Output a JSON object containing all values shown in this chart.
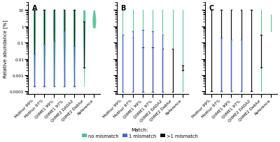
{
  "categories": [
    "Mothur 99%",
    "Mothur 97%",
    "QIIME1 99%",
    "QIIME1 97%",
    "QIIME2 DADA2",
    "QIIME2 Deblur",
    "Reference"
  ],
  "colors": {
    "green": "#4dbe8c",
    "blue": "#4169cd",
    "gray": "#888888",
    "black": "#111111"
  },
  "ylim_log": [
    7e-05,
    30
  ],
  "yticks": [
    0.0001,
    0.001,
    0.01,
    0.1,
    1,
    10
  ],
  "ytick_labels": [
    "0.0001",
    "0.001",
    "0.01",
    "0.1",
    "1",
    "10"
  ],
  "ylabel": "Relative abundance [%]",
  "panel_labels": [
    "A",
    "B",
    "C"
  ],
  "legend_labels": [
    "no mismatch",
    "1 mismatch",
    ">1 mismatch"
  ],
  "panels": {
    "A": {
      "green": {
        "tops": [
          10,
          10,
          10,
          10,
          10,
          10,
          10
        ],
        "bottoms": [
          0.0002,
          0.0002,
          0.0002,
          0.0002,
          0.0002,
          0.0002,
          0.8
        ],
        "mids": [
          1.5,
          2.0,
          1.5,
          2.0,
          1.8,
          2.0,
          2.2
        ],
        "widths": [
          0.12,
          0.12,
          0.12,
          0.12,
          0.12,
          0.12,
          0.18
        ]
      },
      "blue": {
        "tops": [
          0.02,
          0.08,
          0.12,
          0.5,
          0.06,
          null,
          null
        ],
        "bottoms": [
          0.0002,
          0.0002,
          0.0002,
          0.0002,
          0.0002,
          null,
          null
        ]
      },
      "black": {
        "tops": [
          10,
          10,
          10,
          10,
          10,
          2.0,
          null
        ],
        "bottoms": [
          0.0002,
          0.0002,
          0.0002,
          0.0002,
          0.0002,
          0.003,
          null
        ]
      }
    },
    "B": {
      "green": {
        "tops": [
          10,
          10,
          10,
          10,
          10,
          10,
          10
        ],
        "bottoms": [
          9e-05,
          9e-05,
          9e-05,
          9e-05,
          9e-05,
          9e-05,
          9e-05
        ],
        "mids": [
          0.3,
          0.3,
          0.3,
          0.3,
          0.3,
          0.3,
          0.3
        ],
        "widths": [
          0.0,
          0.0,
          0.0,
          0.0,
          0.0,
          0.0,
          0.0
        ]
      },
      "blue": {
        "tops": [
          0.3,
          0.5,
          0.6,
          0.5,
          0.3,
          null,
          null
        ],
        "bottoms": [
          9e-05,
          9e-05,
          9e-05,
          9e-05,
          9e-05,
          null,
          null
        ]
      },
      "gray": {
        "tops": [
          0.3,
          0.2,
          null,
          null,
          null,
          null,
          null
        ],
        "bottoms": [
          9e-05,
          9e-05,
          null,
          null,
          null,
          null,
          null
        ]
      },
      "black": {
        "tops": [
          null,
          null,
          0.05,
          0.05,
          0.04,
          0.04,
          0.004
        ],
        "bottoms": [
          null,
          null,
          9e-05,
          9e-05,
          9e-05,
          9e-05,
          0.002
        ]
      }
    },
    "C": {
      "green": {
        "tops": [
          10,
          10,
          10,
          10,
          10,
          10,
          5
        ],
        "bottoms": [
          0.0001,
          0.0001,
          0.0001,
          0.0001,
          0.0001,
          0.0001,
          0.5
        ],
        "mids": [
          3,
          3,
          3,
          3,
          3,
          3,
          2
        ],
        "widths": [
          0.0,
          0.0,
          0.0,
          0.0,
          0.0,
          0.0,
          0.0
        ]
      },
      "blue": {
        "tops": [
          null,
          0.2,
          0.15,
          0.15,
          null,
          null,
          null
        ],
        "bottoms": [
          null,
          0.0001,
          0.0001,
          0.0001,
          null,
          null,
          null
        ]
      },
      "black": {
        "tops": [
          10,
          10,
          10,
          10,
          10,
          0.3,
          null
        ],
        "bottoms": [
          0.0001,
          0.0001,
          0.0001,
          0.0001,
          0.0001,
          0.003,
          null
        ]
      }
    }
  },
  "figsize": [
    4.0,
    2.05
  ],
  "dpi": 100
}
